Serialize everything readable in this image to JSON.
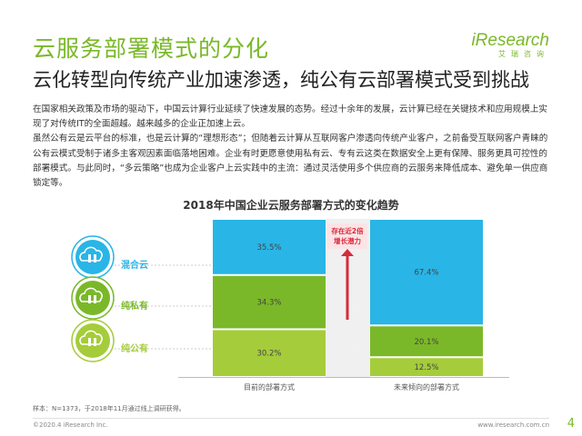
{
  "title": "云服务部署模式的分化",
  "subtitle": "云化转型向传统产业加速渗透，纯公有云部署模式受到挑战",
  "brand": {
    "name": "iResearch",
    "name_cn": "艾瑞咨询",
    "color": "#7ab829"
  },
  "body_paragraphs": [
    "在国家相关政策及市场的驱动下，中国云计算行业延续了快速发展的态势。经过十余年的发展，云计算已经在关键技术和应用规模上实现了对传统IT的全面超越。越来越多的企业正加速上云。",
    "虽然公有云是云平台的标准，也是云计算的“理想形态”；但随着云计算从互联网客户渗透向传统产业客户，之前备受互联网客户青睐的公有云模式受制于诸多主客观因素面临落地困难。企业有时更愿意使用私有云、专有云这类在数据安全上更有保障、服务更具可控性的部署模式。与此同时，“多云策略”也成为企业客户上云实践中的主流：通过灵活使用多个供应商的云服务来降低成本、避免单一供应商锁定等。"
  ],
  "chart_data": {
    "type": "bar",
    "stacked": true,
    "percent": true,
    "title": "2018年中国企业云服务部署方式的变化趋势",
    "categories": [
      "目前的部署方式",
      "未来倾向的部署方式"
    ],
    "series": [
      {
        "name": "纯公有",
        "values": [
          30.2,
          12.5
        ],
        "color": "#a5cc3a"
      },
      {
        "name": "纯私有",
        "values": [
          34.3,
          20.1
        ],
        "color": "#7ab829"
      },
      {
        "name": "混合云",
        "values": [
          35.5,
          67.4
        ],
        "color": "#29b5e6"
      }
    ],
    "value_labels": {
      "纯公有": [
        "30.2%",
        "12.5%"
      ],
      "纯私有": [
        "34.3%",
        "20.1%"
      ],
      "混合云": [
        "35.5%",
        "67.4%"
      ]
    },
    "annotation": "存在近2倍\n增长潜力",
    "annotation_color": "#d62b3a",
    "legend_position": "left",
    "legend_icons": [
      "cloud-icon",
      "cloud-icon",
      "cloud-icon"
    ]
  },
  "footnote": "样本：N=1373，于2018年11月通过线上调研获得。",
  "footer_left": "©2020.4 iResearch Inc.",
  "footer_right": "www.iresearch.com.cn",
  "page_number": "4"
}
